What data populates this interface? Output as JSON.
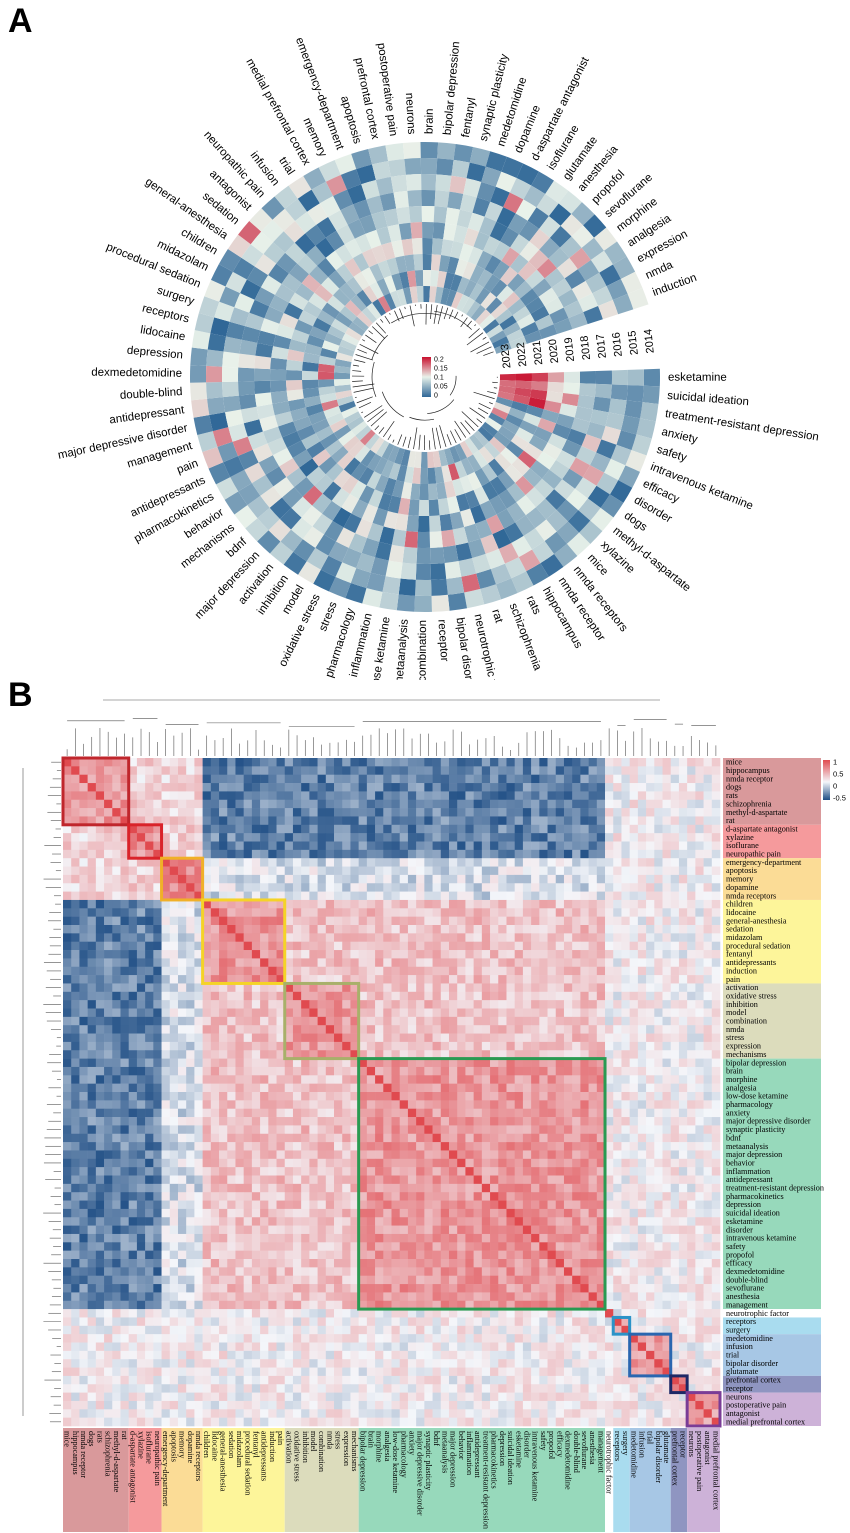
{
  "panels": {
    "a_label": "A",
    "b_label": "B"
  },
  "chart_data": [
    {
      "type": "heatmap",
      "name": "circular-keyword-year-heatmap",
      "years": [
        "2014",
        "2015",
        "2016",
        "2017",
        "2018",
        "2019",
        "2020",
        "2021",
        "2022",
        "2023"
      ],
      "keywords": [
        "esketamine",
        "suicidal ideation",
        "treatment-resistant depression",
        "anxiety",
        "safety",
        "intravenous ketamine",
        "efficacy",
        "disorder",
        "dogs",
        "methyl-d-aspartate",
        "xylazine",
        "mice",
        "nmda receptors",
        "nmda receptor",
        "hippocampus",
        "rats",
        "schizophrenia",
        "rat",
        "neurotrophic factor",
        "bipolar disorder",
        "receptor",
        "combination",
        "metaanalysis",
        "low-dose ketamine",
        "inflammation",
        "pharmacology",
        "stress",
        "oxidative stress",
        "model",
        "inhibition",
        "activation",
        "major depression",
        "bdnf",
        "mechanisms",
        "behavior",
        "pharmacokinetics",
        "antidepressants",
        "pain",
        "management",
        "major depressive disorder",
        "antidepressant",
        "double-blind",
        "dexmedetomidine",
        "depression",
        "lidocaine",
        "receptors",
        "surgery",
        "procedural sedation",
        "midazolam",
        "children",
        "general-anesthesia",
        "sedation",
        "antagonist",
        "neuropathic pain",
        "infusion",
        "trial",
        "medial prefrontal cortex",
        "memory",
        "emergency-department",
        "apoptosis",
        "prefrontal cortex",
        "postoperative pain",
        "neurons",
        "brain",
        "bipolar depression",
        "fentanyl",
        "synaptic plasticity",
        "medetomidine",
        "dopamine",
        "d-aspartate antagonist",
        "isoflurane",
        "glutamate",
        "anesthesia",
        "propofol",
        "sevoflurane",
        "morphine",
        "analgesia",
        "expression",
        "nmda",
        "induction"
      ],
      "legend_ticks": [
        "0.2",
        "0.15",
        "0.1",
        "0.05",
        "0"
      ],
      "value_range": [
        0,
        0.2
      ],
      "colors": {
        "low": "#2f6797",
        "mid": "#e9f2ea",
        "high": "#c8102e"
      }
    },
    {
      "type": "heatmap",
      "name": "keyword-correlation-heatmap",
      "value_range": [
        -0.8,
        1
      ],
      "legend_ticks": [
        "1",
        "0.5",
        "0",
        "-0.5"
      ],
      "colors": {
        "negative": "#1f4e85",
        "zero": "#f4f6fa",
        "positive": "#e04a4f"
      },
      "clusters": [
        {
          "color": "#d9999b",
          "box": "#c0262c",
          "terms": [
            "mice",
            "hippocampus",
            "nmda receptor",
            "dogs",
            "rats",
            "schizophrenia",
            "methyl-d-aspartate",
            "rat"
          ]
        },
        {
          "color": "#f59a9c",
          "box": "#d9232a",
          "terms": [
            "d-aspartate antagonist",
            "xylazine",
            "isoflurane",
            "neuropathic pain"
          ]
        },
        {
          "color": "#fbdc96",
          "box": "#f0b028",
          "terms": [
            "emergency-department",
            "apoptosis",
            "memory",
            "dopamine",
            "nmda receptors"
          ]
        },
        {
          "color": "#fdf59a",
          "box": "#f5d327",
          "terms": [
            "children",
            "lidocaine",
            "general-anesthesia",
            "sedation",
            "midazolam",
            "procedural sedation",
            "fentanyl",
            "antidepressants",
            "induction",
            "pain"
          ]
        },
        {
          "color": "#dcdcbc",
          "box": "#a8b06a",
          "terms": [
            "activation",
            "oxidative stress",
            "inhibition",
            "model",
            "combination",
            "nmda",
            "stress",
            "expression",
            "mechanisms"
          ]
        },
        {
          "color": "#97d9bb",
          "box": "#2a9a52",
          "terms": [
            "bipolar depression",
            "brain",
            "morphine",
            "analgesia",
            "low-dose ketamine",
            "pharmacology",
            "anxiety",
            "major depressive disorder",
            "synaptic plasticity",
            "bdnf",
            "metaanalysis",
            "major depression",
            "behavior",
            "inflammation",
            "antidepressant",
            "treatment-resistant depression",
            "pharmacokinetics",
            "depression",
            "suicidal ideation",
            "esketamine",
            "disorder",
            "intravenous ketamine",
            "safety",
            "propofol",
            "efficacy",
            "dexmedetomidine",
            "double-blind",
            "sevoflurane",
            "anesthesia",
            "management"
          ]
        },
        {
          "color": "#ffffff",
          "box": "",
          "terms": [
            "neurotrophic factor"
          ]
        },
        {
          "color": "#a9dcef",
          "box": "#2b93c8",
          "terms": [
            "receptors",
            "surgery"
          ]
        },
        {
          "color": "#a7c7e5",
          "box": "#2a66b0",
          "terms": [
            "medetomidine",
            "infusion",
            "trial",
            "bipolar disorder",
            "glutamate"
          ]
        },
        {
          "color": "#8f95c1",
          "box": "#1d2866",
          "terms": [
            "prefrontal cortex",
            "receptor"
          ]
        },
        {
          "color": "#cdb2d8",
          "box": "#7a3c96",
          "terms": [
            "neurons",
            "postoperative pain",
            "antagonist",
            "medial prefrontal cortex"
          ]
        }
      ]
    }
  ]
}
